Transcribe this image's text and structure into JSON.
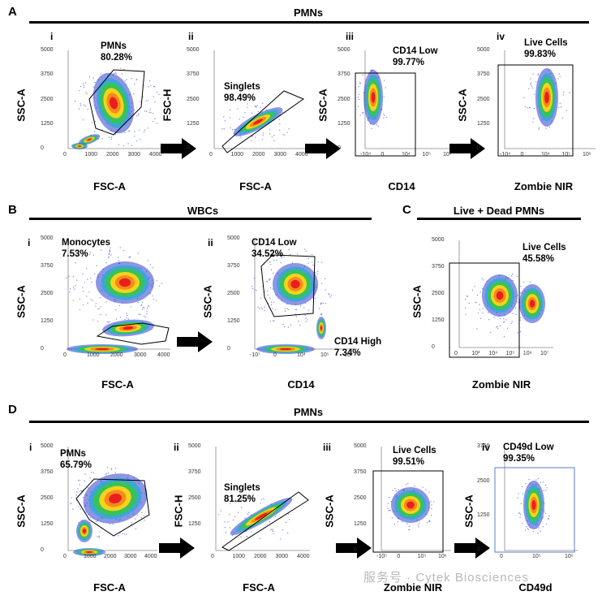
{
  "sections": {
    "A": {
      "letter": "A",
      "title": "PMNs"
    },
    "B": {
      "letter": "B",
      "title": "WBCs"
    },
    "C": {
      "letter": "C",
      "title": "Live + Dead PMNs"
    },
    "D": {
      "letter": "D",
      "title": "PMNs"
    }
  },
  "panels": {
    "Ai": {
      "roman": "i",
      "x": "FSC-A",
      "y": "SSC-A",
      "gate": "PMNs",
      "pct": "80.28%",
      "xticks": [
        "0",
        "1000",
        "2000",
        "3000",
        "4000"
      ],
      "yticks": [
        "5000",
        "3750",
        "2500",
        "1250",
        "0"
      ]
    },
    "Aii": {
      "roman": "ii",
      "x": "FSC-A",
      "y": "FSC-H",
      "gate": "Singlets",
      "pct": "98.49%",
      "xticks": [
        "0",
        "1000",
        "2000",
        "3000",
        "4000"
      ],
      "yticks": [
        "5000",
        "3750",
        "2500",
        "1250",
        "0"
      ]
    },
    "Aiii": {
      "roman": "iii",
      "x": "CD14",
      "y": "SSC-A",
      "gate": "CD14 Low",
      "pct": "99.77%",
      "xticks": [
        "-10⁴",
        "0",
        "10⁴",
        "10⁵",
        "10⁶"
      ],
      "yticks": [
        "5000",
        "3750",
        "2500",
        "1250",
        "0"
      ]
    },
    "Aiv": {
      "roman": "iv",
      "x": "Zombie NIR",
      "y": "SSC-A",
      "gate": "Live Cells",
      "pct": "99.83%",
      "xticks": [
        "-10⁴",
        "0",
        "10⁴",
        "10⁵",
        "10⁶"
      ],
      "yticks": [
        "5000",
        "3750",
        "2500",
        "1250",
        "0"
      ]
    },
    "Bi": {
      "roman": "i",
      "x": "FSC-A",
      "y": "SSC-A",
      "gate": "Monocytes",
      "pct": "7.53%",
      "xticks": [
        "0",
        "1000",
        "2000",
        "3000",
        "4000"
      ],
      "yticks": [
        "5000",
        "3750",
        "2500",
        "1250",
        "0"
      ]
    },
    "Bii": {
      "roman": "ii",
      "x": "CD14",
      "y": "SSC-A",
      "gate": "CD14 Low",
      "pct": "34.52%",
      "gate2": "CD14 High",
      "pct2": "7.34%",
      "xticks": [
        "-10⁷",
        "0",
        "10⁴",
        "10⁵",
        "10⁶"
      ],
      "yticks": [
        "5000",
        "3750",
        "2500",
        "1250",
        "0"
      ]
    },
    "C": {
      "roman": "",
      "x": "Zombie NIR",
      "y": "SSC-A",
      "gate": "Live Cells",
      "pct": "45.58%",
      "xticks": [
        "0",
        "10³",
        "10⁴",
        "10⁵",
        "10⁶",
        "10⁷"
      ],
      "yticks": [
        "5000",
        "3750",
        "2500",
        "1250",
        "0"
      ]
    },
    "Di": {
      "roman": "i",
      "x": "FSC-A",
      "y": "SSC-A",
      "gate": "PMNs",
      "pct": "65.79%",
      "xticks": [
        "0",
        "1000",
        "2000",
        "3000",
        "4000"
      ],
      "yticks": [
        "5000",
        "3750",
        "2500",
        "1250",
        "0"
      ]
    },
    "Dii": {
      "roman": "ii",
      "x": "FSC-A",
      "y": "FSC-H",
      "gate": "Singlets",
      "pct": "81.25%",
      "xticks": [
        "0",
        "1000",
        "2000",
        "3000",
        "4000"
      ],
      "yticks": [
        "5000",
        "3750",
        "2500",
        "1250",
        "0"
      ]
    },
    "Diii": {
      "roman": "iii",
      "x": "Zombie NIR",
      "y": "SSC-A",
      "gate": "Live Cells",
      "pct": "99.51%",
      "xticks": [
        "-10⁵",
        "0",
        "10⁵",
        "10⁶"
      ],
      "yticks": [
        "5000",
        "3750",
        "2500",
        "1250",
        "0"
      ]
    },
    "Div": {
      "roman": "iv",
      "x": "CD49d",
      "y": "SSC-A",
      "gate": "CD49d Low",
      "pct": "99.35%",
      "xticks": [
        "0",
        "10⁵",
        "10⁶"
      ],
      "yticks": [
        "3750",
        "2500",
        "1250",
        "0"
      ]
    }
  },
  "watermark": "服务号 · Cytek Biosciences",
  "colors": {
    "dense": "#e8201c",
    "mid": "#f7d31a",
    "low": "#38c25a",
    "sparse": "#2e3fd0"
  }
}
